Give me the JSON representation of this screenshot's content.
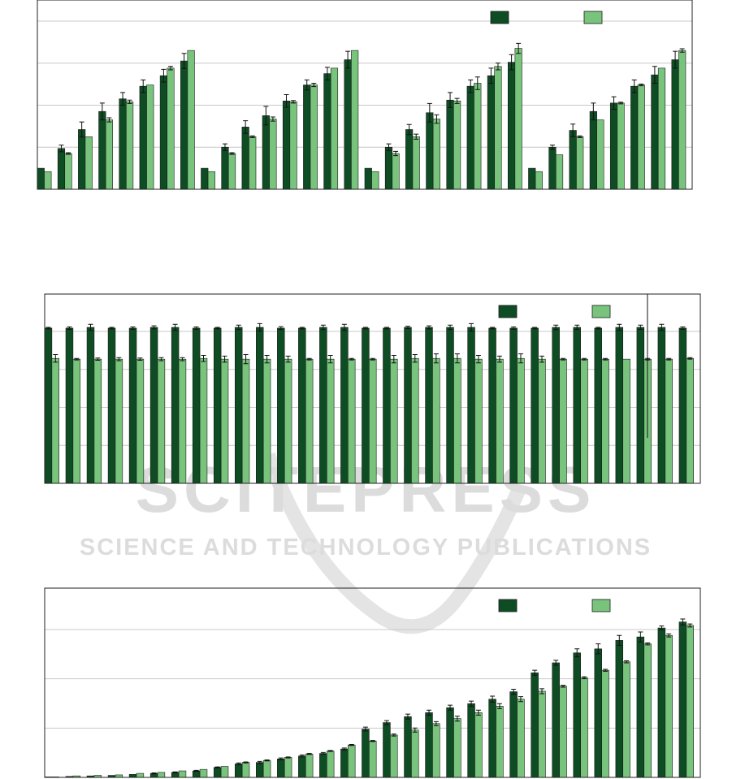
{
  "watermark": {
    "line1": "SCITEPRESS",
    "line2": "SCIENCE AND TECHNOLOGY PUBLICATIONS"
  },
  "colors": {
    "series_a": "#0e4d24",
    "series_b": "#79c47c",
    "grid": "#c8c8c8",
    "frame": "#222222"
  },
  "chart_data": [
    {
      "type": "bar",
      "title": "",
      "xlabel": "",
      "ylabel": "",
      "ylim": [
        0,
        4.5
      ],
      "grid": true,
      "legend": "top-right",
      "series": [
        {
          "values": [
            0.5,
            0.97,
            1.42,
            1.85,
            2.15,
            2.45,
            2.7,
            3.05,
            0.5,
            1.0,
            1.48,
            1.75,
            2.1,
            2.48,
            2.75,
            3.08,
            0.5,
            1.0,
            1.42,
            1.82,
            2.12,
            2.45,
            2.7,
            3.02,
            0.5,
            1.0,
            1.4,
            1.85,
            2.05,
            2.45,
            2.72,
            3.08
          ],
          "errors": [
            0.0,
            0.08,
            0.18,
            0.2,
            0.15,
            0.15,
            0.15,
            0.18,
            0.0,
            0.08,
            0.15,
            0.22,
            0.15,
            0.12,
            0.15,
            0.2,
            0.0,
            0.08,
            0.12,
            0.22,
            0.18,
            0.15,
            0.18,
            0.18,
            0.0,
            0.05,
            0.15,
            0.2,
            0.15,
            0.15,
            0.2,
            0.2
          ]
        },
        {
          "values": [
            0.42,
            0.85,
            1.25,
            1.65,
            2.08,
            2.48,
            2.88,
            3.3,
            0.42,
            0.85,
            1.25,
            1.67,
            2.08,
            2.48,
            2.88,
            3.3,
            0.42,
            0.85,
            1.25,
            1.67,
            2.1,
            2.52,
            2.92,
            3.35,
            0.42,
            0.82,
            1.25,
            1.65,
            2.05,
            2.48,
            2.88,
            3.3
          ],
          "errors": [
            0.0,
            0.02,
            0.0,
            0.05,
            0.04,
            0.0,
            0.04,
            0.0,
            0.0,
            0.02,
            0.02,
            0.05,
            0.03,
            0.04,
            0.0,
            0.0,
            0.0,
            0.05,
            0.06,
            0.1,
            0.06,
            0.15,
            0.08,
            0.12,
            0.0,
            0.0,
            0.02,
            0.0,
            0.02,
            0.02,
            0.0,
            0.04
          ]
        }
      ]
    },
    {
      "type": "bar",
      "title": "",
      "xlabel": "",
      "ylabel": "",
      "ylim": [
        0,
        5
      ],
      "grid": true,
      "legend": "top-right",
      "series": [
        {
          "values": [
            4.1,
            4.1,
            4.12,
            4.1,
            4.1,
            4.12,
            4.12,
            4.1,
            4.1,
            4.12,
            4.12,
            4.1,
            4.1,
            4.12,
            4.12,
            4.1,
            4.1,
            4.12,
            4.12,
            4.12,
            4.12,
            4.1,
            4.1,
            4.1,
            4.12,
            4.12,
            4.1,
            4.12,
            4.12,
            4.12,
            4.1
          ],
          "errors": [
            0.02,
            0.03,
            0.08,
            0.02,
            0.03,
            0.04,
            0.08,
            0.03,
            0.02,
            0.06,
            0.1,
            0.04,
            0.02,
            0.06,
            0.08,
            0.02,
            0.02,
            0.03,
            0.04,
            0.06,
            0.1,
            0.02,
            0.03,
            0.02,
            0.06,
            0.06,
            0.02,
            0.08,
            0.06,
            0.08,
            0.03
          ]
        },
        {
          "values": [
            3.3,
            3.28,
            3.28,
            3.28,
            3.28,
            3.28,
            3.28,
            3.3,
            3.28,
            3.28,
            3.28,
            3.28,
            3.28,
            3.28,
            3.28,
            3.28,
            3.28,
            3.3,
            3.3,
            3.3,
            3.28,
            3.28,
            3.3,
            3.28,
            3.28,
            3.28,
            3.28,
            3.28,
            3.28,
            3.28,
            3.3
          ],
          "errors": [
            0.1,
            0.02,
            0.03,
            0.04,
            0.03,
            0.04,
            0.04,
            0.08,
            0.08,
            0.12,
            0.1,
            0.08,
            0.02,
            0.1,
            0.02,
            0.02,
            0.1,
            0.1,
            0.12,
            0.12,
            0.1,
            0.08,
            0.12,
            0.08,
            0.02,
            0.02,
            0.02,
            0.0,
            0.02,
            0.02,
            0.02
          ]
        }
      ],
      "reference_line": {
        "x_index": 28.5,
        "from": 1.2,
        "to": 5.0
      }
    },
    {
      "type": "bar",
      "title": "",
      "xlabel": "",
      "ylabel": "",
      "ylim": [
        0,
        3.8
      ],
      "grid": true,
      "legend": "top-right",
      "series": [
        {
          "values": [
            0.01,
            0.02,
            0.03,
            0.04,
            0.06,
            0.08,
            0.1,
            0.13,
            0.2,
            0.27,
            0.3,
            0.37,
            0.43,
            0.48,
            0.57,
            0.97,
            1.1,
            1.22,
            1.3,
            1.4,
            1.48,
            1.57,
            1.72,
            2.1,
            2.3,
            2.5,
            2.58,
            2.75,
            2.82,
            3.0,
            3.12
          ],
          "errors": [
            0.0,
            0.0,
            0.0,
            0.0,
            0.0,
            0.01,
            0.01,
            0.01,
            0.01,
            0.02,
            0.02,
            0.02,
            0.02,
            0.02,
            0.02,
            0.04,
            0.04,
            0.05,
            0.05,
            0.05,
            0.05,
            0.06,
            0.05,
            0.05,
            0.05,
            0.08,
            0.1,
            0.1,
            0.1,
            0.04,
            0.06
          ]
        },
        {
          "values": [
            0.01,
            0.03,
            0.04,
            0.05,
            0.08,
            0.1,
            0.13,
            0.16,
            0.22,
            0.3,
            0.34,
            0.4,
            0.47,
            0.53,
            0.65,
            0.73,
            0.85,
            0.95,
            1.08,
            1.18,
            1.3,
            1.43,
            1.57,
            1.73,
            1.83,
            2.0,
            2.15,
            2.32,
            2.68,
            2.85,
            3.05
          ],
          "errors": [
            0.0,
            0.0,
            0.0,
            0.0,
            0.0,
            0.0,
            0.0,
            0.0,
            0.0,
            0.01,
            0.01,
            0.01,
            0.01,
            0.01,
            0.01,
            0.01,
            0.02,
            0.04,
            0.04,
            0.05,
            0.05,
            0.05,
            0.05,
            0.05,
            0.02,
            0.02,
            0.02,
            0.02,
            0.02,
            0.03,
            0.03
          ]
        }
      ]
    }
  ]
}
